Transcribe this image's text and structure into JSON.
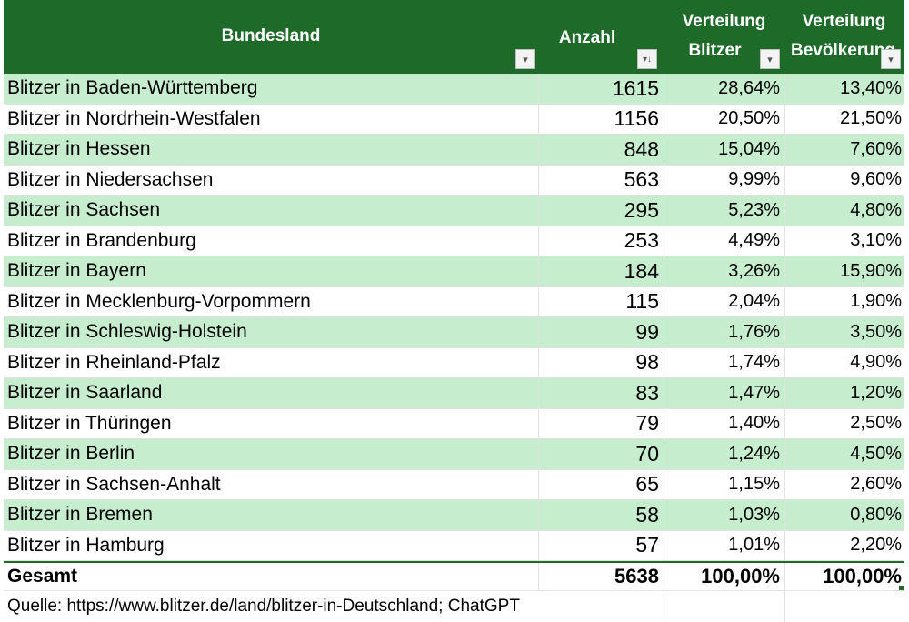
{
  "header": {
    "col1": "Bundesland",
    "col2": "Anzahl",
    "col3_line1": "Verteilung",
    "col3_line2": "Blitzer",
    "col4_line1": "Verteilung",
    "col4_line2": "Bevölkerung",
    "filter_glyph": "▾",
    "sort_glyph": "▾↓"
  },
  "rows": [
    {
      "land": "Blitzer in Baden-Württemberg",
      "anzahl": "1615",
      "blitzer": "28,64%",
      "bev": "13,40%"
    },
    {
      "land": "Blitzer in Nordrhein-Westfalen",
      "anzahl": "1156",
      "blitzer": "20,50%",
      "bev": "21,50%"
    },
    {
      "land": "Blitzer in Hessen",
      "anzahl": "848",
      "blitzer": "15,04%",
      "bev": "7,60%"
    },
    {
      "land": "Blitzer in Niedersachsen",
      "anzahl": "563",
      "blitzer": "9,99%",
      "bev": "9,60%"
    },
    {
      "land": "Blitzer in Sachsen",
      "anzahl": "295",
      "blitzer": "5,23%",
      "bev": "4,80%"
    },
    {
      "land": "Blitzer in Brandenburg",
      "anzahl": "253",
      "blitzer": "4,49%",
      "bev": "3,10%"
    },
    {
      "land": "Blitzer in Bayern",
      "anzahl": "184",
      "blitzer": "3,26%",
      "bev": "15,90%"
    },
    {
      "land": "Blitzer in Mecklenburg-Vorpommern",
      "anzahl": "115",
      "blitzer": "2,04%",
      "bev": "1,90%"
    },
    {
      "land": "Blitzer in Schleswig-Holstein",
      "anzahl": "99",
      "blitzer": "1,76%",
      "bev": "3,50%"
    },
    {
      "land": "Blitzer in Rheinland-Pfalz",
      "anzahl": "98",
      "blitzer": "1,74%",
      "bev": "4,90%"
    },
    {
      "land": "Blitzer in Saarland",
      "anzahl": "83",
      "blitzer": "1,47%",
      "bev": "1,20%"
    },
    {
      "land": "Blitzer in Thüringen",
      "anzahl": "79",
      "blitzer": "1,40%",
      "bev": "2,50%"
    },
    {
      "land": "Blitzer in Berlin",
      "anzahl": "70",
      "blitzer": "1,24%",
      "bev": "4,50%"
    },
    {
      "land": "Blitzer in Sachsen-Anhalt",
      "anzahl": "65",
      "blitzer": "1,15%",
      "bev": "2,60%"
    },
    {
      "land": "Blitzer in Bremen",
      "anzahl": "58",
      "blitzer": "1,03%",
      "bev": "0,80%"
    },
    {
      "land": "Blitzer in Hamburg",
      "anzahl": "57",
      "blitzer": "1,01%",
      "bev": "2,20%"
    }
  ],
  "total": {
    "land": "Gesamt",
    "anzahl": "5638",
    "blitzer": "100,00%",
    "bev": "100,00%"
  },
  "source": "Quelle: https://www.blitzer.de/land/blitzer-in-Deutschland; ChatGPT",
  "colors": {
    "header_bg": "#1e6b29",
    "band": "#c6eece",
    "header_text": "#ffffff"
  }
}
